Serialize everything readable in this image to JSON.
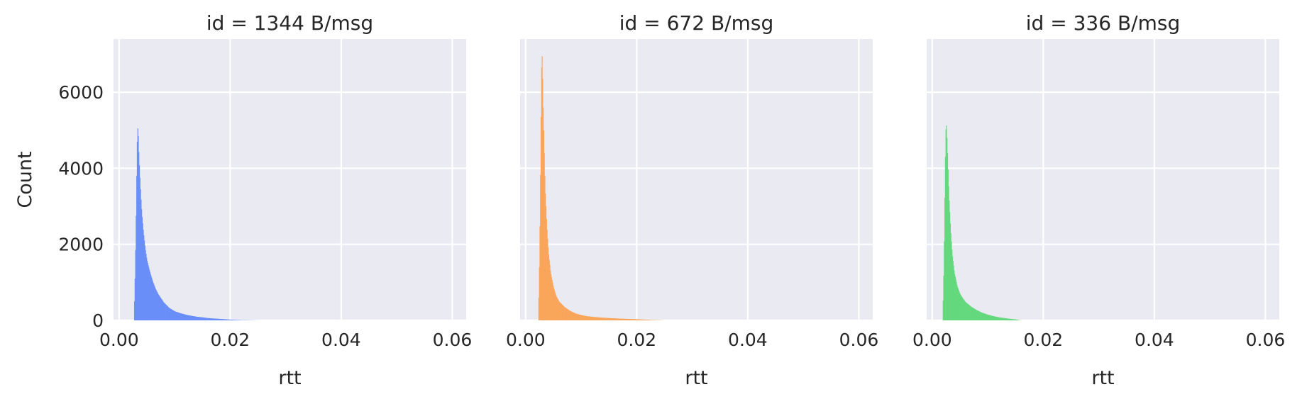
{
  "chart_data": [
    {
      "type": "histogram",
      "title": "id = 1344 B/msg",
      "xlabel": "rtt",
      "ylabel": "Count",
      "xlim": [
        -0.001,
        0.0625
      ],
      "ylim": [
        0,
        7400
      ],
      "xticks": [
        0.0,
        0.02,
        0.04,
        0.06
      ],
      "xtick_labels": [
        "0.00",
        "0.02",
        "0.04",
        "0.06"
      ],
      "yticks": [
        0,
        2000,
        4000,
        6000
      ],
      "ytick_labels": [
        "0",
        "2000",
        "4000",
        "6000"
      ],
      "grid": true,
      "color": "#6a8ef8",
      "profile": [
        [
          0.0027,
          200
        ],
        [
          0.0029,
          1400
        ],
        [
          0.0031,
          3200
        ],
        [
          0.0032,
          4400
        ],
        [
          0.0033,
          5000
        ],
        [
          0.0034,
          5100
        ],
        [
          0.0035,
          4600
        ],
        [
          0.0037,
          3900
        ],
        [
          0.0039,
          3300
        ],
        [
          0.0041,
          2800
        ],
        [
          0.0044,
          2300
        ],
        [
          0.0047,
          1900
        ],
        [
          0.005,
          1600
        ],
        [
          0.0055,
          1300
        ],
        [
          0.006,
          1050
        ],
        [
          0.0065,
          850
        ],
        [
          0.007,
          700
        ],
        [
          0.008,
          480
        ],
        [
          0.009,
          330
        ],
        [
          0.01,
          240
        ],
        [
          0.011,
          190
        ],
        [
          0.012,
          150
        ],
        [
          0.013,
          120
        ],
        [
          0.014,
          95
        ],
        [
          0.015,
          80
        ],
        [
          0.016,
          60
        ],
        [
          0.018,
          40
        ],
        [
          0.02,
          20
        ],
        [
          0.022,
          8
        ],
        [
          0.025,
          0
        ]
      ]
    },
    {
      "type": "histogram",
      "title": "id = 672 B/msg",
      "xlabel": "rtt",
      "ylabel": "",
      "xlim": [
        -0.001,
        0.0625
      ],
      "ylim": [
        0,
        7400
      ],
      "xticks": [
        0.0,
        0.02,
        0.04,
        0.06
      ],
      "xtick_labels": [
        "0.00",
        "0.02",
        "0.04",
        "0.06"
      ],
      "yticks": [
        0,
        2000,
        4000,
        6000
      ],
      "grid": true,
      "color": "#f9a55b",
      "profile": [
        [
          0.0023,
          200
        ],
        [
          0.0025,
          1800
        ],
        [
          0.0027,
          4500
        ],
        [
          0.0028,
          6200
        ],
        [
          0.0029,
          7100
        ],
        [
          0.003,
          6800
        ],
        [
          0.0031,
          5900
        ],
        [
          0.0033,
          4700
        ],
        [
          0.0035,
          3500
        ],
        [
          0.0038,
          2500
        ],
        [
          0.0041,
          1800
        ],
        [
          0.0045,
          1250
        ],
        [
          0.005,
          880
        ],
        [
          0.0055,
          640
        ],
        [
          0.006,
          500
        ],
        [
          0.007,
          350
        ],
        [
          0.008,
          250
        ],
        [
          0.009,
          180
        ],
        [
          0.01,
          140
        ],
        [
          0.011,
          110
        ],
        [
          0.012,
          95
        ],
        [
          0.013,
          80
        ],
        [
          0.015,
          60
        ],
        [
          0.017,
          45
        ],
        [
          0.02,
          30
        ],
        [
          0.022,
          15
        ],
        [
          0.025,
          0
        ]
      ]
    },
    {
      "type": "histogram",
      "title": "id = 336 B/msg",
      "xlabel": "rtt",
      "ylabel": "",
      "xlim": [
        -0.001,
        0.0625
      ],
      "ylim": [
        0,
        7400
      ],
      "xticks": [
        0.0,
        0.02,
        0.04,
        0.06
      ],
      "xtick_labels": [
        "0.00",
        "0.02",
        "0.04",
        "0.06"
      ],
      "yticks": [
        0,
        2000,
        4000,
        6000
      ],
      "grid": true,
      "color": "#64d87c",
      "profile": [
        [
          0.0019,
          200
        ],
        [
          0.0021,
          1500
        ],
        [
          0.0023,
          3800
        ],
        [
          0.0024,
          4800
        ],
        [
          0.0025,
          5250
        ],
        [
          0.0026,
          5000
        ],
        [
          0.0028,
          4200
        ],
        [
          0.003,
          3300
        ],
        [
          0.0033,
          2400
        ],
        [
          0.0036,
          1750
        ],
        [
          0.004,
          1250
        ],
        [
          0.0045,
          900
        ],
        [
          0.005,
          700
        ],
        [
          0.0055,
          580
        ],
        [
          0.006,
          480
        ],
        [
          0.007,
          360
        ],
        [
          0.008,
          270
        ],
        [
          0.009,
          200
        ],
        [
          0.01,
          150
        ],
        [
          0.011,
          110
        ],
        [
          0.012,
          80
        ],
        [
          0.013,
          60
        ],
        [
          0.014,
          40
        ],
        [
          0.015,
          25
        ],
        [
          0.016,
          0
        ]
      ]
    }
  ]
}
